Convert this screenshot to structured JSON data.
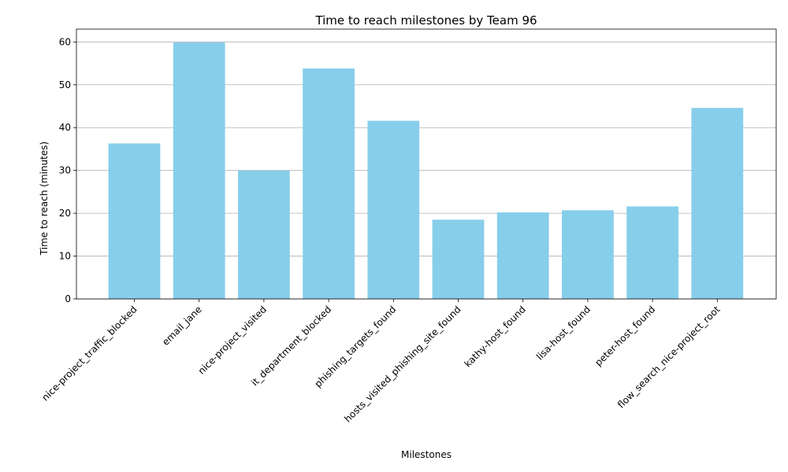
{
  "chart_data": {
    "type": "bar",
    "title": "Time to reach milestones by Team 96",
    "xlabel": "Milestones",
    "ylabel": "Time to reach (minutes)",
    "categories": [
      "nice-project_traffic_blocked",
      "email_jane",
      "nice-project_visited",
      "it_department_blocked",
      "phishing_targets_found",
      "hosts_visited_phishing_site_found",
      "kathy-host_found",
      "lisa-host_found",
      "peter-host_found",
      "flow_search_nice-project_root"
    ],
    "values": [
      36.3,
      59.9,
      30.0,
      53.8,
      41.6,
      18.5,
      20.2,
      20.7,
      21.6,
      44.6
    ],
    "ylim": [
      0,
      63
    ],
    "yticks": [
      0,
      10,
      20,
      30,
      40,
      50,
      60
    ],
    "grid": "y",
    "bar_color": "#87ceeb"
  }
}
